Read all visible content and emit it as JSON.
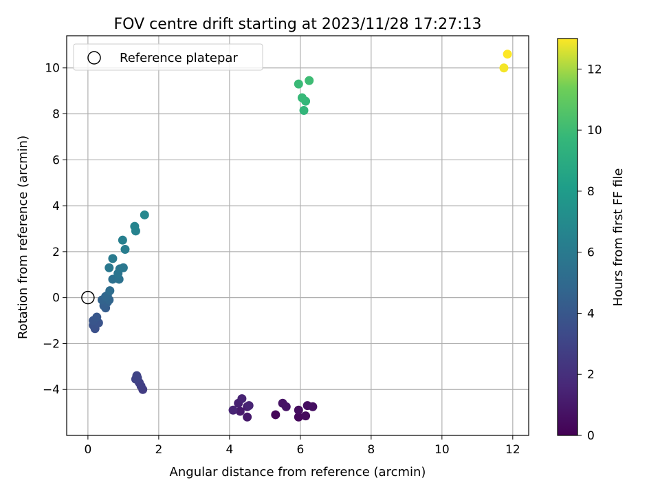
{
  "chart_data": {
    "type": "scatter",
    "title": "FOV centre drift starting at 2023/11/28 17:27:13",
    "xlabel": "Angular distance from reference (arcmin)",
    "ylabel": "Rotation from reference (arcmin)",
    "xlim": [
      -0.6,
      12.45
    ],
    "ylim": [
      -6.0,
      11.4
    ],
    "xticks": [
      0,
      2,
      4,
      6,
      8,
      10,
      12
    ],
    "yticks": [
      -4,
      -2,
      0,
      2,
      4,
      6,
      8,
      10
    ],
    "grid": true,
    "legend": {
      "position": "top-left",
      "entries": [
        "Reference platepar"
      ]
    },
    "reference_point": {
      "x": 0,
      "y": 0
    },
    "colorbar": {
      "label": "Hours from first FF file",
      "range": [
        0,
        13
      ],
      "ticks": [
        0,
        2,
        4,
        6,
        8,
        10,
        12
      ],
      "colormap": "viridis"
    },
    "points": [
      {
        "x": 5.3,
        "y": -5.1,
        "h": 0.2
      },
      {
        "x": 5.95,
        "y": -5.2,
        "h": 0.3
      },
      {
        "x": 6.15,
        "y": -5.15,
        "h": 0.4
      },
      {
        "x": 5.95,
        "y": -4.9,
        "h": 0.5
      },
      {
        "x": 6.2,
        "y": -4.7,
        "h": 0.55
      },
      {
        "x": 6.35,
        "y": -4.75,
        "h": 0.6
      },
      {
        "x": 5.5,
        "y": -4.6,
        "h": 0.7
      },
      {
        "x": 5.6,
        "y": -4.75,
        "h": 0.75
      },
      {
        "x": 4.5,
        "y": -5.2,
        "h": 1.0
      },
      {
        "x": 4.3,
        "y": -4.95,
        "h": 1.1
      },
      {
        "x": 4.5,
        "y": -4.75,
        "h": 1.2
      },
      {
        "x": 4.25,
        "y": -4.6,
        "h": 1.3
      },
      {
        "x": 4.35,
        "y": -4.4,
        "h": 1.4
      },
      {
        "x": 4.55,
        "y": -4.7,
        "h": 1.45
      },
      {
        "x": 4.1,
        "y": -4.9,
        "h": 1.5
      },
      {
        "x": 1.55,
        "y": -4.0,
        "h": 2.6
      },
      {
        "x": 1.5,
        "y": -3.85,
        "h": 2.7
      },
      {
        "x": 1.45,
        "y": -3.7,
        "h": 2.8
      },
      {
        "x": 1.4,
        "y": -3.5,
        "h": 2.9
      },
      {
        "x": 1.35,
        "y": -3.55,
        "h": 2.95
      },
      {
        "x": 1.38,
        "y": -3.4,
        "h": 3.0
      },
      {
        "x": 0.2,
        "y": -1.35,
        "h": 3.6
      },
      {
        "x": 0.15,
        "y": -1.2,
        "h": 3.7
      },
      {
        "x": 0.3,
        "y": -1.1,
        "h": 3.8
      },
      {
        "x": 0.15,
        "y": -1.0,
        "h": 3.9
      },
      {
        "x": 0.25,
        "y": -0.85,
        "h": 4.0
      },
      {
        "x": 0.5,
        "y": -0.45,
        "h": 4.3
      },
      {
        "x": 0.45,
        "y": -0.35,
        "h": 4.4
      },
      {
        "x": 0.55,
        "y": -0.2,
        "h": 4.5
      },
      {
        "x": 0.4,
        "y": -0.1,
        "h": 4.6
      },
      {
        "x": 0.6,
        "y": -0.1,
        "h": 4.7
      },
      {
        "x": 0.5,
        "y": 0.05,
        "h": 4.8
      },
      {
        "x": 0.55,
        "y": 0.1,
        "h": 4.9
      },
      {
        "x": 0.62,
        "y": 0.3,
        "h": 5.2
      },
      {
        "x": 0.7,
        "y": 0.8,
        "h": 5.4
      },
      {
        "x": 0.88,
        "y": 0.8,
        "h": 5.5
      },
      {
        "x": 0.85,
        "y": 1.05,
        "h": 5.6
      },
      {
        "x": 0.9,
        "y": 1.25,
        "h": 5.7
      },
      {
        "x": 1.0,
        "y": 1.3,
        "h": 5.8
      },
      {
        "x": 0.6,
        "y": 1.3,
        "h": 5.9
      },
      {
        "x": 0.7,
        "y": 1.7,
        "h": 6.0
      },
      {
        "x": 1.05,
        "y": 2.1,
        "h": 6.2
      },
      {
        "x": 0.98,
        "y": 2.5,
        "h": 6.3
      },
      {
        "x": 1.35,
        "y": 2.9,
        "h": 6.5
      },
      {
        "x": 1.32,
        "y": 3.1,
        "h": 6.6
      },
      {
        "x": 1.6,
        "y": 3.6,
        "h": 6.8
      },
      {
        "x": 6.1,
        "y": 8.15,
        "h": 9.6
      },
      {
        "x": 6.15,
        "y": 8.55,
        "h": 9.7
      },
      {
        "x": 6.05,
        "y": 8.7,
        "h": 9.8
      },
      {
        "x": 5.95,
        "y": 9.3,
        "h": 9.9
      },
      {
        "x": 6.25,
        "y": 9.45,
        "h": 10.0
      },
      {
        "x": 11.75,
        "y": 10.0,
        "h": 12.9
      },
      {
        "x": 11.85,
        "y": 10.6,
        "h": 13.0
      }
    ]
  }
}
